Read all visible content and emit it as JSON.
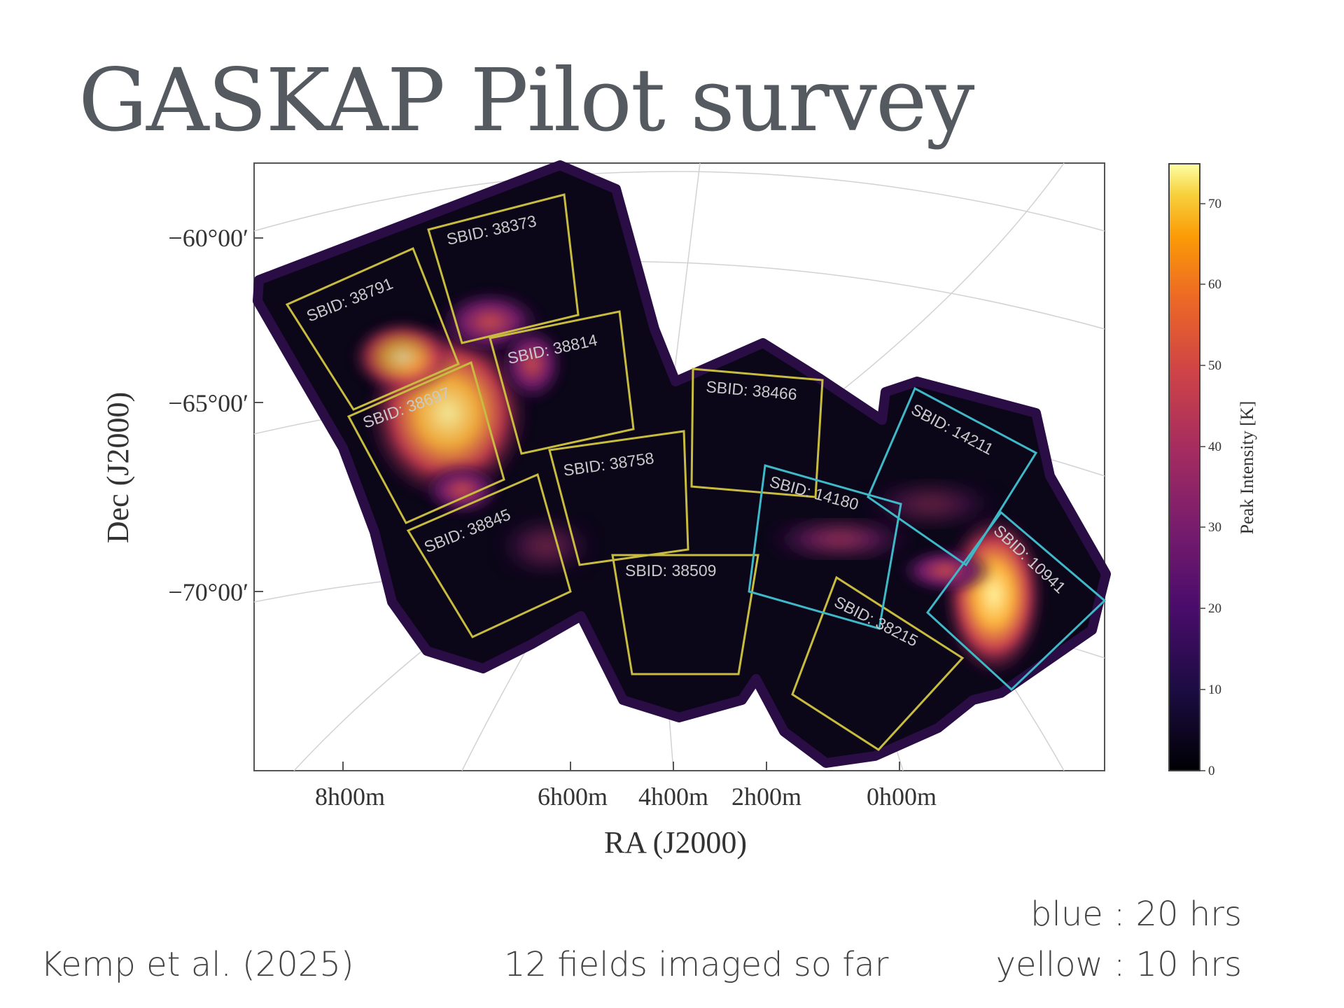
{
  "slide": {
    "title": "GASKAP Pilot survey",
    "citation": "Kemp et al. (2025)",
    "fields_note": "12 fields imaged so far",
    "legend_blue": "blue : 20 hrs",
    "legend_yellow": "yellow : 10 hrs"
  },
  "chart_data": {
    "type": "heatmap",
    "xlabel": "RA (J2000)",
    "ylabel": "Dec (J2000)",
    "x_ticks": [
      "8h00m",
      "6h00m",
      "4h00m",
      "2h00m",
      "0h00m"
    ],
    "y_ticks": [
      "−60°00′",
      "−65°00′",
      "−70°00′"
    ],
    "colorbar": {
      "label": "Peak Intensity [K]",
      "range": [
        0,
        75
      ],
      "ticks": [
        "0",
        "10",
        "20",
        "30",
        "40",
        "50",
        "60",
        "70"
      ],
      "colormap": "inferno"
    },
    "fields": [
      {
        "label": "SBID: 38373",
        "color": "yellow"
      },
      {
        "label": "SBID: 38791",
        "color": "yellow"
      },
      {
        "label": "SBID: 38814",
        "color": "yellow"
      },
      {
        "label": "SBID: 38466",
        "color": "yellow"
      },
      {
        "label": "SBID: 38697",
        "color": "yellow"
      },
      {
        "label": "SBID: 38758",
        "color": "yellow"
      },
      {
        "label": "SBID: 38845",
        "color": "yellow"
      },
      {
        "label": "SBID: 38509",
        "color": "yellow"
      },
      {
        "label": "SBID: 38215",
        "color": "yellow"
      },
      {
        "label": "SBID: 14180",
        "color": "blue"
      },
      {
        "label": "SBID: 14211",
        "color": "blue"
      },
      {
        "label": "SBID: 10941",
        "color": "blue"
      }
    ],
    "colors": {
      "yellow_field": "#c8bc40",
      "blue_field": "#3fb8c8",
      "frame": "#555555",
      "grid": "#d0d0d0"
    }
  }
}
